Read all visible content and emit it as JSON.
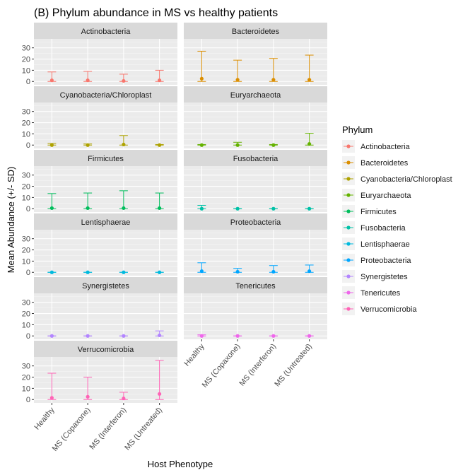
{
  "chart_data": {
    "type": "scatter",
    "title": "(B) Phylum abundance in MS vs healthy patients",
    "xlabel": "Host Phenotype",
    "ylabel": "Mean Abundance (+/- SD)",
    "ylim": [
      -3,
      38
    ],
    "yticks": [
      0,
      10,
      20,
      30
    ],
    "grid": true,
    "legend_title": "Phylum",
    "legend_position": "right",
    "categories": [
      "Healthy",
      "MS (Copaxone)",
      "MS (Interferon)",
      "MS (Untreated)"
    ],
    "panels": [
      {
        "name": "Actinobacteria",
        "color": "#F8766D",
        "means": [
          1.0,
          1.0,
          0.5,
          1.0
        ],
        "upper": [
          8.5,
          9.0,
          6.5,
          10.0
        ]
      },
      {
        "name": "Bacteroidetes",
        "color": "#DB8E00",
        "means": [
          2.5,
          1.5,
          1.5,
          1.5
        ],
        "upper": [
          27.0,
          19.0,
          20.5,
          23.5
        ]
      },
      {
        "name": "Cyanobacteria/Chloroplast",
        "color": "#AEA200",
        "means": [
          0.0,
          0.0,
          0.5,
          0.0
        ],
        "upper": [
          1.5,
          1.0,
          8.5,
          0.5
        ]
      },
      {
        "name": "Euryarchaeota",
        "color": "#64B200",
        "means": [
          0.0,
          0.0,
          0.0,
          1.0
        ],
        "upper": [
          0.5,
          2.5,
          0.5,
          10.5
        ]
      },
      {
        "name": "Firmicutes",
        "color": "#00BD5C",
        "means": [
          0.5,
          0.5,
          0.5,
          0.5
        ],
        "upper": [
          13.5,
          14.0,
          16.0,
          14.0
        ]
      },
      {
        "name": "Fusobacteria",
        "color": "#00C1A7",
        "means": [
          0.0,
          0.0,
          0.0,
          0.0
        ],
        "upper": [
          3.0,
          0.0,
          0.0,
          0.0
        ]
      },
      {
        "name": "Lentisphaerae",
        "color": "#00BADE",
        "means": [
          0.0,
          0.0,
          0.0,
          0.0
        ],
        "upper": [
          0.0,
          0.0,
          0.0,
          0.0
        ]
      },
      {
        "name": "Proteobacteria",
        "color": "#00A6FF",
        "means": [
          1.0,
          0.5,
          0.5,
          1.0
        ],
        "upper": [
          8.5,
          3.5,
          6.0,
          6.5
        ]
      },
      {
        "name": "Synergistetes",
        "color": "#B385FF",
        "means": [
          0.0,
          0.0,
          0.0,
          0.5
        ],
        "upper": [
          0.0,
          0.0,
          0.0,
          4.5
        ]
      },
      {
        "name": "Tenericutes",
        "color": "#EF67EB",
        "means": [
          0.0,
          0.0,
          0.0,
          0.0
        ],
        "upper": [
          1.0,
          0.0,
          0.0,
          0.0
        ]
      },
      {
        "name": "Verrucomicrobia",
        "color": "#FF63B6",
        "means": [
          1.5,
          2.5,
          1.0,
          5.0
        ],
        "upper": [
          23.5,
          20.0,
          6.5,
          35.0
        ]
      }
    ]
  }
}
